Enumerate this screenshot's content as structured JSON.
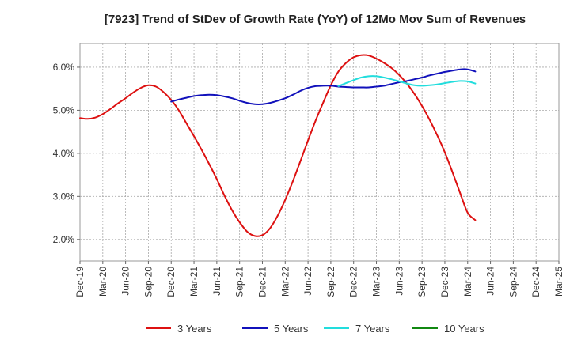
{
  "chart_data": {
    "type": "line",
    "title": "[7923]  Trend of StDev of Growth Rate (YoY) of 12Mo Mov Sum of Revenues",
    "xlabel": "",
    "ylabel": "",
    "ylim": [
      1.5,
      6.55
    ],
    "y_ticks": [
      2.0,
      3.0,
      4.0,
      5.0,
      6.0
    ],
    "y_tick_labels": [
      "2.0%",
      "3.0%",
      "4.0%",
      "5.0%",
      "6.0%"
    ],
    "x_tick_labels": [
      "Dec-19",
      "Mar-20",
      "Jun-20",
      "Sep-20",
      "Dec-20",
      "Mar-21",
      "Jun-21",
      "Sep-21",
      "Dec-21",
      "Mar-22",
      "Jun-22",
      "Sep-22",
      "Dec-22",
      "Mar-23",
      "Jun-23",
      "Sep-23",
      "Dec-23",
      "Mar-24",
      "Jun-24",
      "Sep-24",
      "Dec-24",
      "Mar-25"
    ],
    "grid": true,
    "legend_position": "bottom",
    "series": [
      {
        "name": "3 Years",
        "color": "#dd1111",
        "start_index": 0,
        "values": [
          4.82,
          4.8,
          4.83,
          4.91,
          5.03,
          5.16,
          5.28,
          5.41,
          5.52,
          5.58,
          5.55,
          5.42,
          5.24,
          5.0,
          4.7,
          4.4,
          4.08,
          3.75,
          3.4,
          3.02,
          2.68,
          2.4,
          2.18,
          2.08,
          2.1,
          2.26,
          2.55,
          2.92,
          3.35,
          3.82,
          4.3,
          4.76,
          5.18,
          5.58,
          5.9,
          6.1,
          6.23,
          6.28,
          6.27,
          6.2,
          6.1,
          5.98,
          5.82,
          5.62,
          5.38,
          5.1,
          4.78,
          4.42,
          4.02,
          3.56,
          3.08,
          2.62,
          2.45
        ]
      },
      {
        "name": "5 Years",
        "color": "#1111bb",
        "start_index": 12,
        "values": [
          5.2,
          5.25,
          5.29,
          5.33,
          5.35,
          5.36,
          5.35,
          5.32,
          5.28,
          5.22,
          5.17,
          5.14,
          5.14,
          5.17,
          5.22,
          5.28,
          5.36,
          5.45,
          5.52,
          5.56,
          5.57,
          5.57,
          5.55,
          5.54,
          5.53,
          5.53,
          5.53,
          5.55,
          5.57,
          5.61,
          5.65,
          5.68,
          5.72,
          5.76,
          5.81,
          5.85,
          5.89,
          5.92,
          5.95,
          5.95,
          5.9
        ]
      },
      {
        "name": "7 Years",
        "color": "#22dddd",
        "start_index": 34,
        "values": [
          5.56,
          5.63,
          5.7,
          5.76,
          5.79,
          5.79,
          5.76,
          5.72,
          5.67,
          5.62,
          5.58,
          5.57,
          5.58,
          5.6,
          5.63,
          5.66,
          5.68,
          5.67,
          5.62
        ]
      },
      {
        "name": "10 Years",
        "color": "#118811",
        "start_index": 0,
        "values": []
      }
    ]
  }
}
